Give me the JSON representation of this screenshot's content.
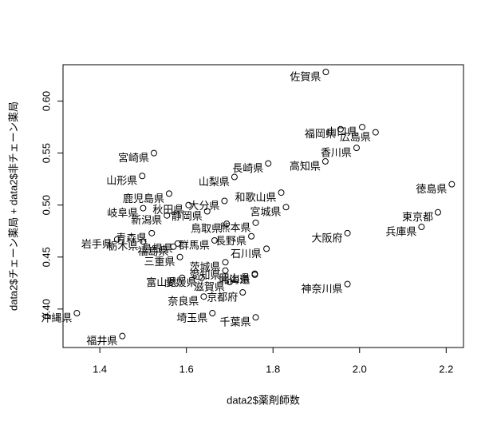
{
  "chart_data": {
    "type": "scatter",
    "xlabel": "data2$薬剤師数",
    "ylabel": "data2$チェーン薬局 + data2$非チェーン薬局",
    "color": "#000000",
    "xlim": [
      1.315,
      2.24
    ],
    "ylim": [
      0.363,
      0.635
    ],
    "xticks": [
      {
        "value": 1.4,
        "label": "1.4"
      },
      {
        "value": 1.6,
        "label": "1.6"
      },
      {
        "value": 1.8,
        "label": "1.8"
      },
      {
        "value": 2.0,
        "label": "2.0"
      },
      2.2
    ],
    "yticks": [
      {
        "value": 0.4,
        "label": "0.40"
      },
      0.45,
      {
        "value": 0.5,
        "label": "0.50"
      },
      0.55,
      {
        "value": 0.6,
        "label": "0.60"
      }
    ],
    "labels": [
      "佐賀県",
      "山口県",
      "福岡県",
      "広島県",
      "香川県",
      "高知県",
      "宮崎県",
      "山梨県",
      "長崎県",
      "鹿児島県",
      "山形県",
      "秋田県",
      "和歌山県",
      "徳島県",
      "岐阜県",
      "静岡県",
      "大分県",
      "新潟県",
      "宮城県",
      "東京都",
      "熊本県",
      "鳥取県",
      "兵庫県",
      "青森県",
      "大阪府",
      "長野県",
      "岩手県",
      "島根県",
      "群馬県",
      "栃木県",
      "福島県",
      "石川県",
      "茨城県",
      "三重県",
      "愛知県",
      "北海道",
      "愛媛県",
      "滋賀県",
      "岡山県",
      "神奈川県",
      "富山県",
      "奈良県",
      "京都府",
      "埼玉県",
      "千葉県",
      "沖縄県",
      "福井県"
    ],
    "x": [
      1.922,
      2.006,
      1.956,
      2.037,
      1.993,
      1.921,
      1.525,
      1.711,
      1.789,
      1.56,
      1.498,
      1.605,
      1.819,
      2.213,
      1.5,
      1.648,
      1.688,
      1.555,
      1.83,
      2.181,
      1.76,
      1.693,
      2.143,
      1.52,
      1.972,
      1.75,
      1.44,
      1.58,
      1.665,
      1.5,
      1.57,
      1.785,
      1.69,
      1.585,
      1.69,
      1.758,
      1.635,
      1.7,
      1.758,
      1.972,
      1.59,
      1.64,
      1.73,
      1.66,
      1.76,
      1.347,
      1.452
    ],
    "values": [
      0.628,
      0.575,
      0.573,
      0.57,
      0.555,
      0.542,
      0.55,
      0.527,
      0.54,
      0.511,
      0.528,
      0.5,
      0.512,
      0.52,
      0.497,
      0.494,
      0.504,
      0.49,
      0.498,
      0.493,
      0.483,
      0.482,
      0.479,
      0.473,
      0.473,
      0.47,
      0.467,
      0.463,
      0.466,
      0.465,
      0.46,
      0.458,
      0.445,
      0.45,
      0.437,
      0.433,
      0.43,
      0.426,
      0.434,
      0.424,
      0.43,
      0.412,
      0.416,
      0.396,
      0.392,
      0.396,
      0.374
    ]
  }
}
